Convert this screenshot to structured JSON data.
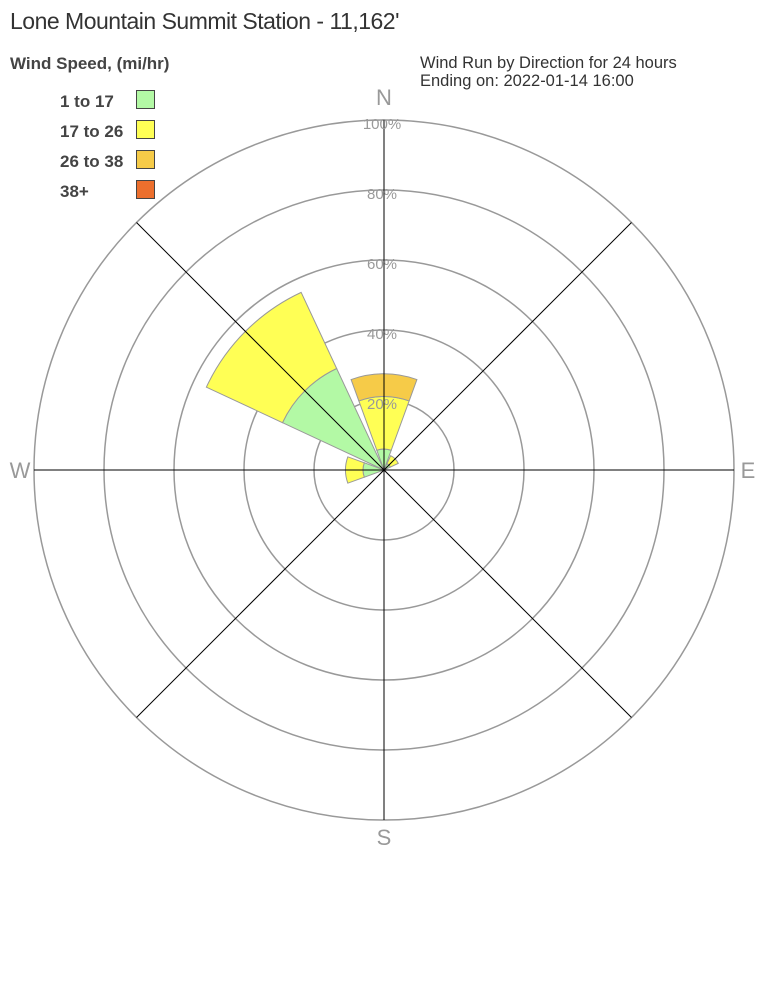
{
  "chart_data": {
    "type": "wind-rose",
    "title": "Lone Mountain Summit Station - 11,162'",
    "subtitle_lines": [
      "Wind Run by Direction for 24 hours",
      "Ending on: 2022-01-14 16:00"
    ],
    "legend_title": "Wind Speed, (mi/hr)",
    "legend_placement": "top-left",
    "radial_unit": "%",
    "radial_range": [
      0,
      100
    ],
    "radial_ticks": [
      "20%",
      "40%",
      "60%",
      "80%",
      "100%"
    ],
    "tick_values": [
      20,
      40,
      60,
      80,
      100
    ],
    "direction_labels": {
      "N": "N",
      "E": "E",
      "S": "S",
      "W": "W"
    },
    "directions": [
      0,
      45,
      90,
      135,
      180,
      225,
      270,
      315
    ],
    "series": [
      {
        "name": "1 to 17",
        "color": "#b3f9a5",
        "values": [
          6,
          2,
          0,
          0,
          0,
          0,
          6,
          32
        ]
      },
      {
        "name": "17 to 26",
        "color": "#ffff55",
        "values": [
          15,
          2.5,
          0,
          0,
          0,
          0,
          5,
          24
        ]
      },
      {
        "name": "26 to 38",
        "color": "#f6cb48",
        "values": [
          6.5,
          0,
          0,
          0,
          0,
          0,
          0,
          0
        ]
      },
      {
        "name": "38+",
        "color": "#ec6f2d",
        "values": [
          0,
          0,
          0,
          0,
          0,
          0,
          0,
          0
        ]
      }
    ]
  }
}
